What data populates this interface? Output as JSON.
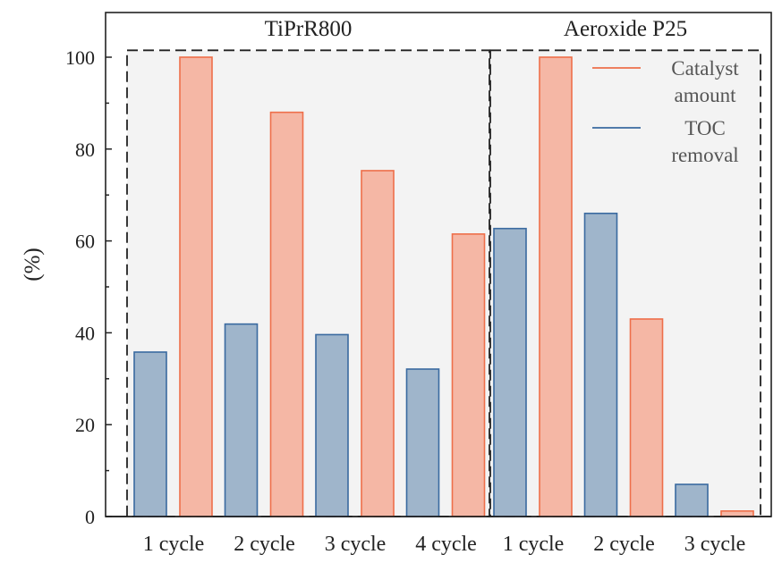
{
  "chart_data": {
    "type": "bar",
    "ylabel": "(%)",
    "ylim": [
      0,
      103
    ],
    "yticks": [
      0,
      20,
      40,
      60,
      80,
      100
    ],
    "grid": false,
    "legend_position": "top-right",
    "colors": {
      "catalyst_fill": "#f5b7a5",
      "catalyst_edge": "#ee6f4a",
      "toc_fill": "#9fb5cb",
      "toc_edge": "#3a6aa0",
      "panel_bg": "#f3f3f3",
      "box": "#222222"
    },
    "legend": [
      {
        "series": "catalyst",
        "label": [
          "Catalyst",
          "amount"
        ]
      },
      {
        "series": "toc",
        "label": [
          "TOC",
          "removal"
        ]
      }
    ],
    "groups": [
      {
        "label": "TiPrR800",
        "categories": [
          {
            "label": "1 cycle",
            "toc": 35.8,
            "catalyst": 100
          },
          {
            "label": "2 cycle",
            "toc": 41.9,
            "catalyst": 88
          },
          {
            "label": "3 cycle",
            "toc": 39.6,
            "catalyst": 75.3
          },
          {
            "label": "4 cycle",
            "toc": 32.1,
            "catalyst": 61.5
          }
        ]
      },
      {
        "label": "Aeroxide P25",
        "categories": [
          {
            "label": "1 cycle",
            "toc": 62.7,
            "catalyst": 100
          },
          {
            "label": "2 cycle",
            "toc": 66,
            "catalyst": 43
          },
          {
            "label": "3 cycle",
            "toc": 7,
            "catalyst": 1.2
          }
        ]
      }
    ]
  }
}
